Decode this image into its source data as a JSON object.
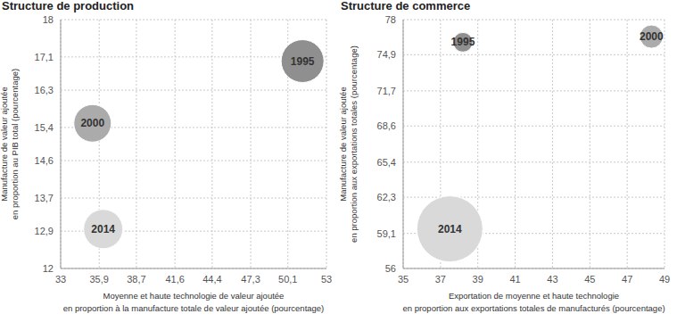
{
  "chart_data": [
    {
      "type": "bubble",
      "title": "Structure de production",
      "x_label": [
        "Moyenne et haute technologie de valeur ajoutée",
        "en proportion à la manufacture totale de valeur ajoutée (pourcentage)"
      ],
      "y_label": [
        "Manufacture de valeur ajoutée",
        "en proportion au PIB total (pourcentage)"
      ],
      "xlim": [
        33,
        53
      ],
      "xticks": [
        33,
        {
          "value": 35.9,
          "label": "35,9"
        },
        {
          "value": 38.7,
          "label": "38,7"
        },
        {
          "value": 41.6,
          "label": "41,6"
        },
        {
          "value": 44.4,
          "label": "44,4"
        },
        {
          "value": 47.3,
          "label": "47,3"
        },
        {
          "value": 50.1,
          "label": "50,1"
        },
        53
      ],
      "ylim": [
        12,
        18
      ],
      "yticks": [
        12,
        {
          "value": 12.9,
          "label": "12,9"
        },
        {
          "value": 13.7,
          "label": "13,7"
        },
        {
          "value": 14.6,
          "label": "14,6"
        },
        {
          "value": 15.4,
          "label": "15,4"
        },
        {
          "value": 16.3,
          "label": "16,3"
        },
        {
          "value": 17.1,
          "label": "17,1"
        },
        18
      ],
      "grid": true,
      "series": [
        {
          "name": "1995",
          "color": "#8f8f8f",
          "x": [
            51.2
          ],
          "values": [
            17.0
          ],
          "sizes": [
            576
          ]
        },
        {
          "name": "2000",
          "color": "#ababab",
          "x": [
            35.4
          ],
          "values": [
            15.5
          ],
          "sizes": [
            441
          ]
        },
        {
          "name": "2014",
          "color": "#d9d9d9",
          "x": [
            36.2
          ],
          "values": [
            12.95
          ],
          "sizes": [
            484
          ]
        }
      ]
    },
    {
      "type": "bubble",
      "title": "Structure de commerce",
      "x_label": [
        "Exportation de moyenne et haute technologie",
        "en proportion aux exportations totales de manufacturés (pourcentage)"
      ],
      "y_label": [
        "Manufacture de valeur ajoutée",
        "en proportion aux exportations totales (pourcentage)"
      ],
      "xlim": [
        35,
        49
      ],
      "xticks": [
        35,
        37,
        39,
        41,
        43,
        45,
        47,
        49
      ],
      "ylim": [
        56,
        78
      ],
      "yticks": [
        56,
        {
          "value": 59.1,
          "label": "59,1"
        },
        {
          "value": 62.3,
          "label": "62,3"
        },
        {
          "value": 65.4,
          "label": "65,4"
        },
        {
          "value": 68.6,
          "label": "68,6"
        },
        {
          "value": 71.7,
          "label": "71,7"
        },
        {
          "value": 74.9,
          "label": "74,9"
        },
        78
      ],
      "grid": true,
      "series": [
        {
          "name": "1995",
          "color": "#8f8f8f",
          "x": [
            38.2
          ],
          "values": [
            76.0
          ],
          "sizes": [
            121
          ]
        },
        {
          "name": "2000",
          "color": "#ababab",
          "x": [
            48.3
          ],
          "values": [
            76.5
          ],
          "sizes": [
            169
          ]
        },
        {
          "name": "2014",
          "color": "#d9d9d9",
          "x": [
            37.5
          ],
          "values": [
            59.5
          ],
          "sizes": [
            1369
          ]
        }
      ]
    }
  ]
}
